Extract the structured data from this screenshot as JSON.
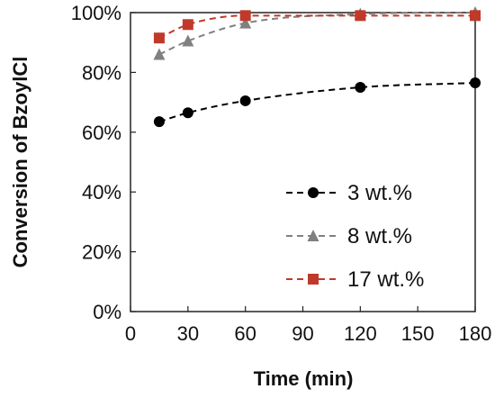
{
  "chart_data": {
    "type": "line",
    "title": "",
    "xlabel": "Time (min)",
    "ylabel": "Conversion of BzoylCl",
    "xlim": [
      0,
      180
    ],
    "ylim": [
      0,
      100
    ],
    "x_ticks": [
      0,
      30,
      60,
      90,
      120,
      150,
      180
    ],
    "y_ticks": [
      0,
      20,
      40,
      60,
      80,
      100
    ],
    "x_tick_labels": [
      "0",
      "30",
      "60",
      "90",
      "120",
      "150",
      "180"
    ],
    "y_tick_labels": [
      "0%",
      "20%",
      "40%",
      "60%",
      "80%",
      "100%"
    ],
    "grid": false,
    "legend_position": "lower-right",
    "series": [
      {
        "name": "3 wt.%",
        "color": "#000000",
        "marker": "circle",
        "line_style": "dashed",
        "x": [
          15,
          30,
          60,
          120,
          180
        ],
        "y": [
          63.5,
          66.5,
          70.5,
          75,
          76.5
        ]
      },
      {
        "name": "8 wt.%",
        "color": "#808080",
        "marker": "triangle",
        "line_style": "dashed",
        "x": [
          15,
          30,
          60,
          120,
          180
        ],
        "y": [
          86,
          90.5,
          96.5,
          99.5,
          100
        ]
      },
      {
        "name": "17 wt.%",
        "color": "#c0392b",
        "marker": "square",
        "line_style": "dashed",
        "x": [
          15,
          30,
          60,
          120,
          180
        ],
        "y": [
          91.5,
          96,
          99,
          99,
          99
        ]
      }
    ]
  }
}
